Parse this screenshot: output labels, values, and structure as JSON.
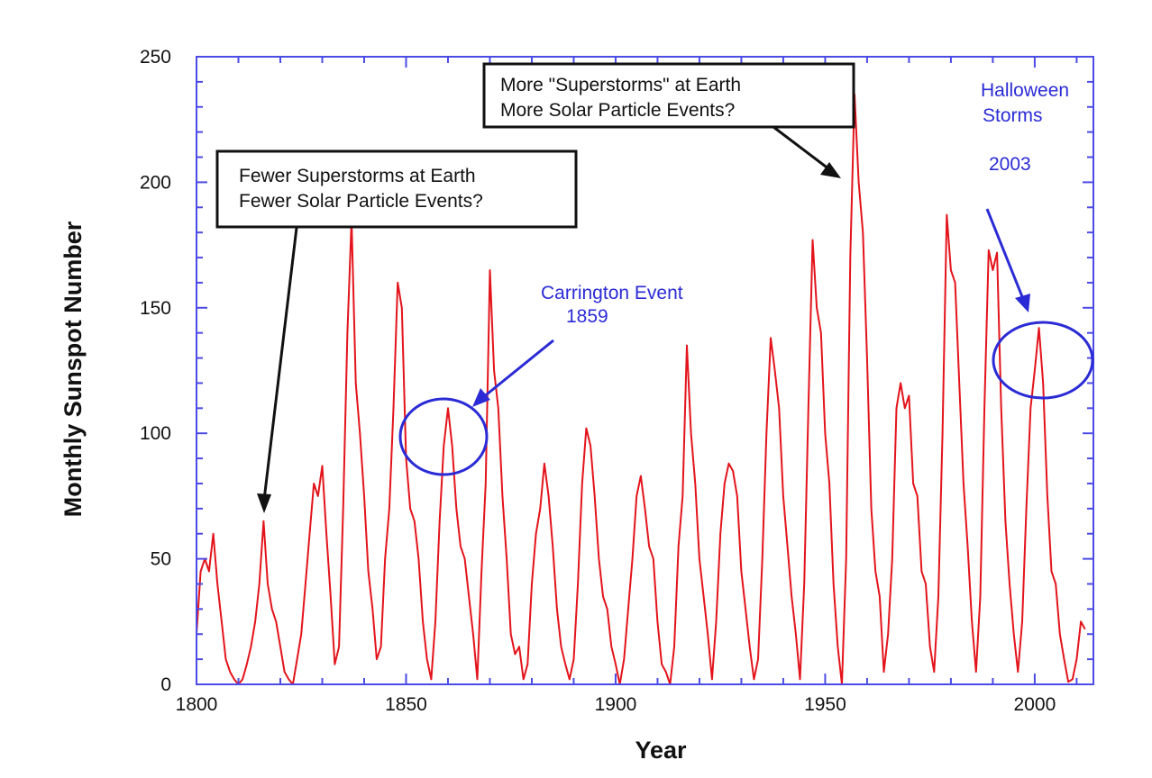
{
  "chart_data": {
    "type": "line",
    "title": "",
    "xlabel": "Year",
    "ylabel": "Monthly Sunspot Number",
    "xlim": [
      1800,
      2014
    ],
    "ylim": [
      0,
      250
    ],
    "x_ticks": [
      "1800",
      "1850",
      "1900",
      "1950",
      "2000"
    ],
    "y_ticks": [
      "0",
      "50",
      "100",
      "150",
      "200",
      "250"
    ],
    "grid": false,
    "colors": {
      "series": "#e3141b",
      "axes": "#4b4be6",
      "annotation_blue": "#2b2bd6",
      "annotation_black": "#111111"
    },
    "series": [
      {
        "x": [
          1800,
          1801,
          1802,
          1803,
          1804,
          1805,
          1806,
          1807,
          1808,
          1809,
          1810,
          1811,
          1812,
          1813,
          1814,
          1815,
          1816,
          1817,
          1818,
          1819,
          1820,
          1821,
          1822,
          1823,
          1824,
          1825,
          1826,
          1827,
          1828,
          1829,
          1830,
          1831,
          1832,
          1833,
          1834,
          1835,
          1836,
          1837,
          1838,
          1839,
          1840,
          1841,
          1842,
          1843,
          1844,
          1845,
          1846,
          1847,
          1848,
          1849,
          1850,
          1851,
          1852,
          1853,
          1854,
          1855,
          1856,
          1857,
          1858,
          1859,
          1860,
          1861,
          1862,
          1863,
          1864,
          1865,
          1866,
          1867,
          1868,
          1869,
          1870,
          1871,
          1872,
          1873,
          1874,
          1875,
          1876,
          1877,
          1878,
          1879,
          1880,
          1881,
          1882,
          1883,
          1884,
          1885,
          1886,
          1887,
          1888,
          1889,
          1890,
          1891,
          1892,
          1893,
          1894,
          1895,
          1896,
          1897,
          1898,
          1899,
          1900,
          1901,
          1902,
          1903,
          1904,
          1905,
          1906,
          1907,
          1908,
          1909,
          1910,
          1911,
          1912,
          1913,
          1914,
          1915,
          1916,
          1917,
          1918,
          1919,
          1920,
          1921,
          1922,
          1923,
          1924,
          1925,
          1926,
          1927,
          1928,
          1929,
          1930,
          1931,
          1932,
          1933,
          1934,
          1935,
          1936,
          1937,
          1938,
          1939,
          1940,
          1941,
          1942,
          1943,
          1944,
          1945,
          1946,
          1947,
          1948,
          1949,
          1950,
          1951,
          1952,
          1953,
          1954,
          1955,
          1956,
          1957,
          1958,
          1959,
          1960,
          1961,
          1962,
          1963,
          1964,
          1965,
          1966,
          1967,
          1968,
          1969,
          1970,
          1971,
          1972,
          1973,
          1974,
          1975,
          1976,
          1977,
          1978,
          1979,
          1980,
          1981,
          1982,
          1983,
          1984,
          1985,
          1986,
          1987,
          1988,
          1989,
          1990,
          1991,
          1992,
          1993,
          1994,
          1995,
          1996,
          1997,
          1998,
          1999,
          2000,
          2001,
          2002,
          2003,
          2004,
          2005,
          2006,
          2007,
          2008,
          2009,
          2010,
          2011,
          2012
        ],
        "y": [
          20,
          45,
          50,
          45,
          60,
          40,
          25,
          10,
          5,
          2,
          0,
          2,
          8,
          15,
          25,
          40,
          65,
          40,
          30,
          25,
          15,
          5,
          2,
          0,
          10,
          20,
          40,
          60,
          80,
          75,
          87,
          60,
          35,
          8,
          15,
          70,
          140,
          185,
          120,
          100,
          75,
          45,
          30,
          10,
          15,
          50,
          70,
          110,
          160,
          150,
          90,
          70,
          65,
          50,
          25,
          10,
          2,
          25,
          65,
          95,
          110,
          95,
          70,
          55,
          50,
          35,
          20,
          2,
          45,
          80,
          165,
          125,
          110,
          75,
          50,
          20,
          12,
          15,
          2,
          8,
          40,
          60,
          70,
          88,
          75,
          55,
          30,
          15,
          8,
          2,
          10,
          40,
          80,
          102,
          95,
          75,
          50,
          35,
          30,
          15,
          8,
          0,
          10,
          30,
          50,
          75,
          83,
          70,
          55,
          50,
          25,
          8,
          5,
          0,
          15,
          55,
          75,
          135,
          100,
          80,
          50,
          35,
          20,
          2,
          25,
          60,
          80,
          88,
          85,
          75,
          45,
          30,
          15,
          2,
          10,
          50,
          100,
          138,
          125,
          110,
          75,
          55,
          35,
          20,
          2,
          40,
          110,
          177,
          150,
          140,
          100,
          80,
          40,
          15,
          0,
          50,
          170,
          235,
          200,
          180,
          130,
          70,
          45,
          35,
          5,
          20,
          50,
          110,
          120,
          110,
          115,
          80,
          75,
          45,
          40,
          15,
          5,
          35,
          100,
          187,
          165,
          160,
          120,
          80,
          55,
          25,
          5,
          35,
          110,
          173,
          165,
          172,
          110,
          65,
          40,
          20,
          5,
          25,
          70,
          110,
          125,
          142,
          120,
          75,
          45,
          40,
          20,
          10,
          1,
          2,
          10,
          25,
          22
        ]
      }
    ],
    "annotations": {
      "fewer": [
        "Fewer Superstorms at Earth",
        "Fewer Solar Particle Events?"
      ],
      "more": [
        "More \"Superstorms\" at Earth",
        "More Solar Particle Events?"
      ],
      "carrington": [
        "Carrington Event",
        "1859"
      ],
      "halloween": [
        "Halloween",
        "Storms",
        "2003"
      ]
    }
  }
}
